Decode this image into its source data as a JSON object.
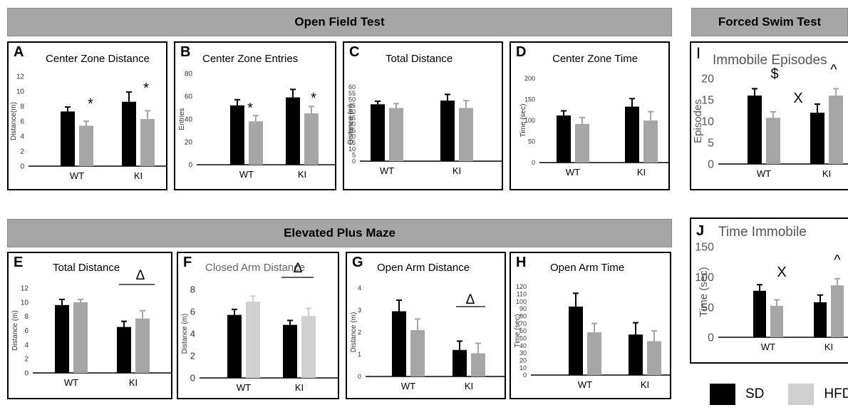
{
  "colors": {
    "sd": "#000000",
    "hfd": "#a6a6a6",
    "hfd_light": "#d0d0d0",
    "header_bg": "#a6a6a6"
  },
  "headers": {
    "open_field": "Open Field Test",
    "forced_swim": "Forced Swim Test",
    "epm": "Elevated Plus Maze"
  },
  "legend": {
    "sd": "SD",
    "hfd": "HFD"
  },
  "chart_data": [
    {
      "id": "A",
      "type": "bar",
      "title": "Center Zone Distance",
      "ylabel": "Distance(m)",
      "categories": [
        "WT",
        "KI"
      ],
      "ylim": [
        0,
        12
      ],
      "yticks": [
        "0",
        "2",
        "4",
        "6",
        "8",
        "10",
        "12"
      ],
      "series": [
        {
          "values": [
            7.3,
            8.6
          ],
          "errors": [
            0.6,
            1.3
          ]
        },
        {
          "values": [
            5.4,
            6.3
          ],
          "errors": [
            0.6,
            1.1
          ]
        }
      ],
      "annotations": [
        "*",
        "*"
      ]
    },
    {
      "id": "B",
      "type": "bar",
      "title": "Center Zone Entries",
      "ylabel": "Entries",
      "categories": [
        "WT",
        "KI"
      ],
      "ylim": [
        0,
        80
      ],
      "yticks": [
        "0",
        "20",
        "40",
        "60",
        "80"
      ],
      "series": [
        {
          "values": [
            52,
            59
          ],
          "errors": [
            5,
            7
          ]
        },
        {
          "values": [
            38,
            45
          ],
          "errors": [
            5,
            6
          ]
        }
      ],
      "annotations": [
        "*",
        "*"
      ]
    },
    {
      "id": "C",
      "type": "bar",
      "title": "Total Distance",
      "ylabel": "Distance (m)",
      "categories": [
        "WT",
        "KI"
      ],
      "ylim": [
        0,
        60
      ],
      "yticks": [
        "0",
        "5",
        "10",
        "15",
        "20",
        "25",
        "30",
        "35",
        "40",
        "45",
        "50",
        "55",
        "60"
      ],
      "series": [
        {
          "values": [
            46,
            49
          ],
          "errors": [
            2.5,
            5
          ]
        },
        {
          "values": [
            43,
            43
          ],
          "errors": [
            3.5,
            6
          ]
        }
      ],
      "annotations": []
    },
    {
      "id": "D",
      "type": "bar",
      "title": "Center Zone Time",
      "ylabel": "Time (sec)",
      "categories": [
        "WT",
        "KI"
      ],
      "ylim": [
        0,
        200
      ],
      "yticks": [
        "0",
        "50",
        "100",
        "150",
        "200"
      ],
      "series": [
        {
          "values": [
            112,
            133
          ],
          "errors": [
            11,
            19
          ]
        },
        {
          "values": [
            92,
            100
          ],
          "errors": [
            15,
            21
          ]
        }
      ],
      "annotations": []
    },
    {
      "id": "E",
      "type": "bar",
      "title": "Total Distance",
      "ylabel": "Distance (m)",
      "categories": [
        "WT",
        "KI"
      ],
      "ylim": [
        0,
        12
      ],
      "yticks": [
        "0",
        "2",
        "4",
        "6",
        "8",
        "10",
        "12"
      ],
      "series": [
        {
          "values": [
            9.6,
            6.5
          ],
          "errors": [
            0.8,
            0.8
          ]
        },
        {
          "values": [
            10.0,
            7.7
          ],
          "errors": [
            0.4,
            1.1
          ]
        }
      ],
      "annotations": [
        "Δ"
      ]
    },
    {
      "id": "F",
      "type": "bar",
      "title": "Closed Arm Distance",
      "ylabel": "Distance (m)",
      "categories": [
        "WT",
        "KI"
      ],
      "ylim": [
        0,
        8
      ],
      "yticks": [
        "0",
        "2",
        "4",
        "6",
        "8"
      ],
      "series": [
        {
          "values": [
            5.7,
            4.8
          ],
          "errors": [
            0.5,
            0.4
          ]
        },
        {
          "values": [
            6.9,
            5.6
          ],
          "errors": [
            0.5,
            0.7
          ]
        }
      ],
      "annotations": [
        "Δ"
      ]
    },
    {
      "id": "G",
      "type": "bar",
      "title": "Open Arm Distance",
      "ylabel": "Distance (m)",
      "categories": [
        "WT",
        "KI"
      ],
      "ylim": [
        0,
        4
      ],
      "yticks": [
        "0",
        "1",
        "2",
        "3",
        "4"
      ],
      "series": [
        {
          "values": [
            2.95,
            1.2
          ],
          "errors": [
            0.5,
            0.4
          ]
        },
        {
          "values": [
            2.1,
            1.05
          ],
          "errors": [
            0.5,
            0.45
          ]
        }
      ],
      "annotations": [
        "Δ"
      ]
    },
    {
      "id": "H",
      "type": "bar",
      "title": "Open Arm Time",
      "ylabel": "Time (sec)",
      "categories": [
        "WT",
        "KI"
      ],
      "ylim": [
        0,
        120
      ],
      "yticks": [
        "0",
        "10",
        "20",
        "30",
        "40",
        "50",
        "60",
        "70",
        "80",
        "90",
        "100",
        "110",
        "120"
      ],
      "series": [
        {
          "values": [
            93,
            55
          ],
          "errors": [
            18,
            16
          ]
        },
        {
          "values": [
            58,
            46
          ],
          "errors": [
            12,
            14
          ]
        }
      ],
      "annotations": []
    },
    {
      "id": "I",
      "type": "bar",
      "title": "Immobile Episodes",
      "ylabel": "Episodes",
      "categories": [
        "WT",
        "KI"
      ],
      "ylim": [
        0,
        20
      ],
      "yticks": [
        "0",
        "5",
        "10",
        "15",
        "20"
      ],
      "series": [
        {
          "values": [
            16,
            12
          ],
          "errors": [
            1.6,
            2.0
          ]
        },
        {
          "values": [
            10.8,
            16
          ],
          "errors": [
            1.4,
            1.6
          ]
        }
      ],
      "annotations": [
        "$",
        "X",
        "^"
      ]
    },
    {
      "id": "J",
      "type": "bar",
      "title": "Time Immobile",
      "ylabel": "Time (sec)",
      "categories": [
        "WT",
        "KI"
      ],
      "ylim": [
        0,
        150
      ],
      "yticks": [
        "0",
        "50",
        "100",
        "150"
      ],
      "series": [
        {
          "values": [
            77,
            58
          ],
          "errors": [
            10,
            12
          ]
        },
        {
          "values": [
            52,
            86
          ],
          "errors": [
            10,
            11
          ]
        }
      ],
      "annotations": [
        "X",
        "^"
      ]
    }
  ]
}
